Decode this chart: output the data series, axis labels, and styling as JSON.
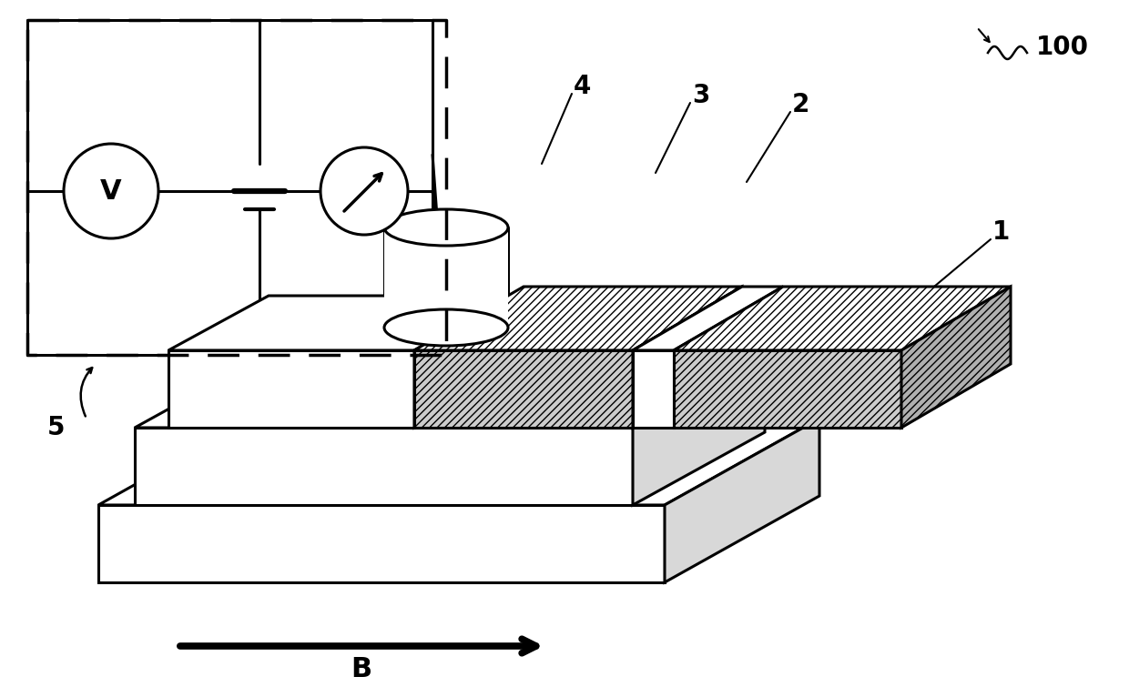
{
  "bg_color": "#ffffff",
  "line_color": "#000000",
  "lw_main": 2.2,
  "lw_thick": 3.0,
  "hatch_pattern": "////",
  "hatch_fc": "#cccccc",
  "gray_face": "#d8d8d8",
  "white_face": "#ffffff",
  "label_fontsize": 20,
  "B_fontsize": 22,
  "ref_100": "100",
  "label_B": "B"
}
